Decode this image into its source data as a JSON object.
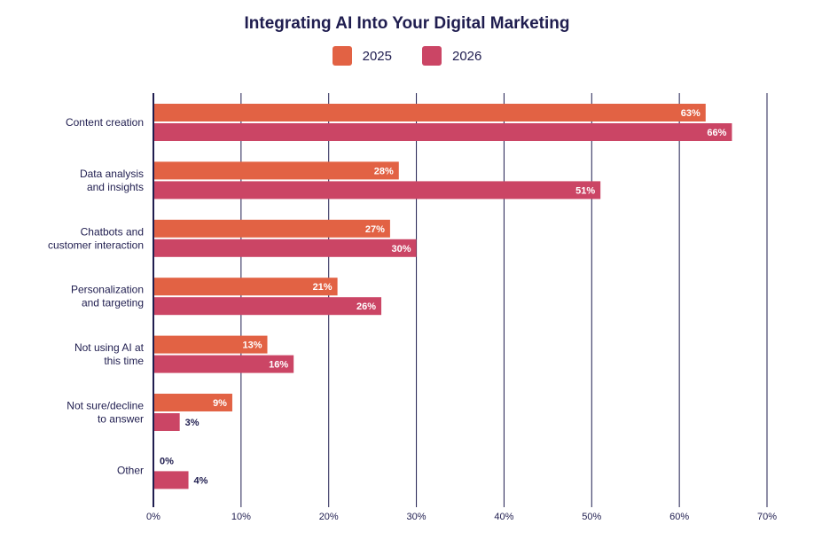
{
  "chart_data": {
    "type": "bar",
    "orientation": "horizontal",
    "title": "Integrating AI Into Your Digital Marketing",
    "categories": [
      [
        "Content creation"
      ],
      [
        "Data analysis",
        "and insights"
      ],
      [
        "Chatbots and",
        "customer interaction"
      ],
      [
        "Personalization",
        "and targeting"
      ],
      [
        "Not using AI at",
        "this time"
      ],
      [
        "Not sure/decline",
        "to answer"
      ],
      [
        "Other"
      ]
    ],
    "series": [
      {
        "name": "2025",
        "color": "#e26244",
        "values": [
          63,
          28,
          27,
          21,
          13,
          9,
          0
        ]
      },
      {
        "name": "2026",
        "color": "#cb4565",
        "values": [
          66,
          51,
          30,
          26,
          16,
          3,
          4
        ]
      }
    ],
    "value_suffix": "%",
    "xlim": [
      0,
      70
    ],
    "xticks": [
      0,
      10,
      20,
      30,
      40,
      50,
      60,
      70
    ],
    "xtick_labels": [
      "0%",
      "10%",
      "20%",
      "30%",
      "40%",
      "50%",
      "60%",
      "70%"
    ],
    "grid": true,
    "legend_position": "top-center",
    "gridline_color": "#1f1d4f"
  }
}
